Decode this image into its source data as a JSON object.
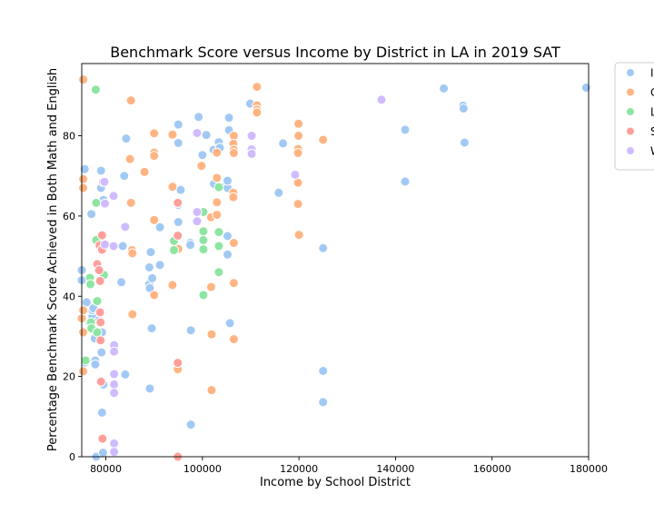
{
  "chart_data": {
    "type": "scatter",
    "title": "Benchmark Score versus Income by District in LA in 2019 SAT",
    "xlabel": "Income by School District",
    "ylabel": "Percentage Benchmark Score Achieved in Both Math and English",
    "xlim": [
      75000,
      180000
    ],
    "ylim": [
      0,
      98
    ],
    "xticks": [
      80000,
      100000,
      120000,
      140000,
      160000,
      180000
    ],
    "yticks": [
      0,
      20,
      40,
      60,
      80
    ],
    "grid": false,
    "legend_position": "outside-top-right",
    "series": [
      {
        "name": "I",
        "color": "#a1c9f4",
        "points": [
          [
            75000,
            46.5
          ],
          [
            75000,
            44
          ],
          [
            75200,
            34.5
          ],
          [
            75600,
            71.7
          ],
          [
            75700,
            23.5
          ],
          [
            76000,
            38.5
          ],
          [
            76600,
            33.5
          ],
          [
            77000,
            60.5
          ],
          [
            77200,
            35
          ],
          [
            77200,
            36.5
          ],
          [
            77400,
            37
          ],
          [
            77700,
            29.5
          ],
          [
            77700,
            23.5
          ],
          [
            77800,
            24
          ],
          [
            77800,
            23
          ],
          [
            78000,
            0
          ],
          [
            78600,
            34
          ],
          [
            79000,
            67
          ],
          [
            79000,
            71.3
          ],
          [
            79100,
            26
          ],
          [
            79200,
            31
          ],
          [
            79200,
            11
          ],
          [
            79400,
            1
          ],
          [
            79500,
            18
          ],
          [
            79500,
            64
          ],
          [
            83200,
            43.5
          ],
          [
            83500,
            52.5
          ],
          [
            83800,
            70
          ],
          [
            84000,
            20.5
          ],
          [
            84200,
            79.3
          ],
          [
            89000,
            47.2
          ],
          [
            89000,
            43
          ],
          [
            89100,
            42
          ],
          [
            89100,
            17
          ],
          [
            89300,
            51
          ],
          [
            89500,
            32
          ],
          [
            89600,
            44.5
          ],
          [
            91200,
            47.8
          ],
          [
            91200,
            57.2
          ],
          [
            95000,
            78.2
          ],
          [
            95000,
            82.8
          ],
          [
            95000,
            58.5
          ],
          [
            95000,
            62.8
          ],
          [
            95500,
            66.5
          ],
          [
            97500,
            53.3
          ],
          [
            97500,
            52.8
          ],
          [
            97600,
            31.5
          ],
          [
            97600,
            8
          ],
          [
            99200,
            84.7
          ],
          [
            100000,
            75.2
          ],
          [
            100800,
            80.2
          ],
          [
            102300,
            76.5
          ],
          [
            102400,
            68
          ],
          [
            103400,
            78.4
          ],
          [
            103600,
            77
          ],
          [
            104900,
            67.5
          ],
          [
            105200,
            67
          ],
          [
            105200,
            68.8
          ],
          [
            105200,
            50.4
          ],
          [
            105200,
            55
          ],
          [
            105500,
            84.5
          ],
          [
            105500,
            81.4
          ],
          [
            105700,
            33.3
          ],
          [
            109900,
            88
          ],
          [
            115800,
            65.8
          ],
          [
            116700,
            78.1
          ],
          [
            125000,
            52
          ],
          [
            125000,
            21.4
          ],
          [
            125000,
            13.6
          ],
          [
            142000,
            81.5
          ],
          [
            142000,
            68.6
          ],
          [
            150000,
            91.8
          ],
          [
            154000,
            87.5
          ],
          [
            154100,
            86.8
          ],
          [
            154300,
            78.3
          ],
          [
            179500,
            92
          ]
        ]
      },
      {
        "name": "C",
        "color": "#ffb482",
        "points": [
          [
            75000,
            34.5
          ],
          [
            75300,
            94
          ],
          [
            75300,
            69.2
          ],
          [
            75300,
            67
          ],
          [
            75300,
            36.5
          ],
          [
            75300,
            31
          ],
          [
            75300,
            21.3
          ],
          [
            85000,
            74.2
          ],
          [
            85200,
            88.8
          ],
          [
            85200,
            63.3
          ],
          [
            85400,
            51.5
          ],
          [
            85500,
            50.7
          ],
          [
            85500,
            35.5
          ],
          [
            88000,
            71
          ],
          [
            90000,
            80.6
          ],
          [
            90000,
            75.8
          ],
          [
            90000,
            75
          ],
          [
            90000,
            59
          ],
          [
            90000,
            40.3
          ],
          [
            93800,
            80.3
          ],
          [
            93800,
            67.3
          ],
          [
            93800,
            42.8
          ],
          [
            95000,
            63.3
          ],
          [
            95000,
            51.8
          ],
          [
            94900,
            21.8
          ],
          [
            99800,
            72.5
          ],
          [
            101800,
            59.7
          ],
          [
            101800,
            42.3
          ],
          [
            101900,
            30.5
          ],
          [
            101900,
            16.6
          ],
          [
            103000,
            75.8
          ],
          [
            103000,
            69.5
          ],
          [
            103000,
            63.4
          ],
          [
            103000,
            60.3
          ],
          [
            106500,
            80
          ],
          [
            106400,
            78
          ],
          [
            106500,
            76.5
          ],
          [
            106500,
            75.7
          ],
          [
            106400,
            65.8
          ],
          [
            106400,
            64.7
          ],
          [
            106500,
            53.3
          ],
          [
            106500,
            43.3
          ],
          [
            106500,
            29.3
          ],
          [
            111300,
            92.2
          ],
          [
            111300,
            87.6
          ],
          [
            111300,
            86.5
          ],
          [
            111300,
            85.8
          ],
          [
            119900,
            83
          ],
          [
            119900,
            80
          ],
          [
            119800,
            76.7
          ],
          [
            119800,
            75.7
          ],
          [
            119800,
            68.3
          ],
          [
            119800,
            63
          ],
          [
            120000,
            55.3
          ],
          [
            125000,
            79
          ]
        ]
      },
      {
        "name": "L",
        "color": "#8de5a1",
        "points": [
          [
            75800,
            24
          ],
          [
            76700,
            44.6
          ],
          [
            76800,
            43
          ],
          [
            76900,
            33.5
          ],
          [
            77000,
            32
          ],
          [
            77900,
            91.5
          ],
          [
            78000,
            63.3
          ],
          [
            78000,
            54
          ],
          [
            78200,
            38.8
          ],
          [
            78200,
            31
          ],
          [
            79600,
            45.3
          ],
          [
            94100,
            53.8
          ],
          [
            94100,
            51.5
          ],
          [
            100200,
            61
          ],
          [
            100200,
            56.2
          ],
          [
            100200,
            54
          ],
          [
            100200,
            51.7
          ],
          [
            100200,
            40.3
          ],
          [
            103400,
            67.2
          ],
          [
            103400,
            56
          ],
          [
            103400,
            52.5
          ],
          [
            103400,
            46
          ]
        ]
      },
      {
        "name": "S",
        "color": "#ff9f9b",
        "points": [
          [
            78200,
            48
          ],
          [
            78600,
            46.5
          ],
          [
            78700,
            52.7
          ],
          [
            78800,
            43.8
          ],
          [
            78800,
            36
          ],
          [
            78900,
            33.5
          ],
          [
            78900,
            29
          ],
          [
            79000,
            18.7
          ],
          [
            79200,
            55.2
          ],
          [
            79200,
            51.6
          ],
          [
            79400,
            68.5
          ],
          [
            79300,
            4.5
          ],
          [
            94900,
            63.3
          ],
          [
            94900,
            55.1
          ],
          [
            94900,
            23.4
          ],
          [
            94900,
            0
          ]
        ]
      },
      {
        "name": "W",
        "color": "#d0bbff",
        "points": [
          [
            79700,
            68.5
          ],
          [
            79800,
            63.1
          ],
          [
            79800,
            52.9
          ],
          [
            81600,
            65
          ],
          [
            81600,
            52.5
          ],
          [
            81700,
            27.8
          ],
          [
            81700,
            26.2
          ],
          [
            81700,
            20.6
          ],
          [
            81700,
            18
          ],
          [
            81700,
            15.9
          ],
          [
            81700,
            3.3
          ],
          [
            81700,
            1.2
          ],
          [
            84000,
            57.3
          ],
          [
            98900,
            80.7
          ],
          [
            98900,
            61
          ],
          [
            98900,
            58.7
          ],
          [
            110200,
            80
          ],
          [
            110200,
            76.6
          ],
          [
            110200,
            75.5
          ],
          [
            119200,
            70.3
          ],
          [
            137100,
            89
          ]
        ]
      }
    ]
  }
}
